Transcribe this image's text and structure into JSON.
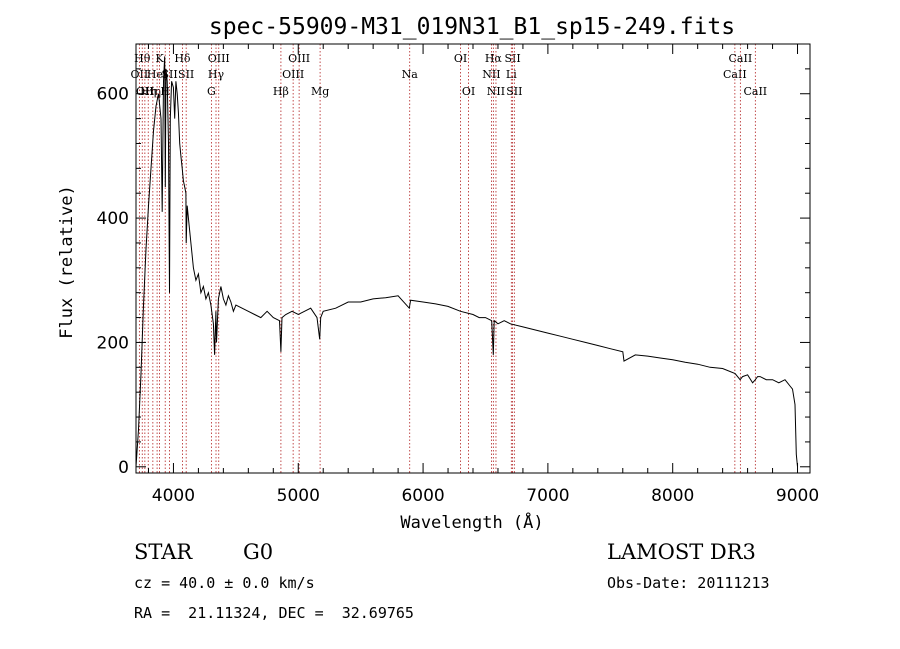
{
  "chart_data": {
    "type": "line",
    "title": "spec-55909-M31_019N31_B1_sp15-249.fits",
    "xlabel": "Wavelength (Å)",
    "ylabel": "Flux (relative)",
    "xlim": [
      3700,
      9100
    ],
    "ylim": [
      -10,
      680
    ],
    "xticks": [
      4000,
      5000,
      6000,
      7000,
      8000,
      9000
    ],
    "xtick_labels": [
      "4000",
      "5000",
      "6000",
      "7000",
      "8000",
      "9000"
    ],
    "yticks": [
      0,
      200,
      400,
      600
    ],
    "ytick_labels": [
      "0",
      "200",
      "400",
      "600"
    ],
    "grid": false,
    "series": [
      {
        "name": "flux",
        "x": [
          3700,
          3720,
          3740,
          3760,
          3780,
          3800,
          3820,
          3840,
          3860,
          3880,
          3900,
          3910,
          3920,
          3930,
          3935,
          3940,
          3950,
          3960,
          3968,
          3975,
          3985,
          4000,
          4010,
          4020,
          4030,
          4040,
          4050,
          4060,
          4070,
          4080,
          4090,
          4100,
          4102,
          4110,
          4120,
          4140,
          4160,
          4180,
          4200,
          4220,
          4240,
          4260,
          4280,
          4300,
          4320,
          4330,
          4340,
          4345,
          4360,
          4380,
          4400,
          4420,
          4440,
          4460,
          4480,
          4500,
          4550,
          4600,
          4650,
          4700,
          4750,
          4800,
          4850,
          4861,
          4870,
          4900,
          4950,
          5000,
          5050,
          5100,
          5150,
          5172,
          5180,
          5200,
          5300,
          5400,
          5500,
          5600,
          5700,
          5800,
          5890,
          5900,
          6000,
          6100,
          6200,
          6300,
          6400,
          6450,
          6500,
          6550,
          6563,
          6570,
          6600,
          6650,
          6700,
          6800,
          6900,
          7000,
          7100,
          7200,
          7300,
          7400,
          7500,
          7600,
          7610,
          7700,
          7800,
          7900,
          8000,
          8100,
          8200,
          8300,
          8400,
          8500,
          8540,
          8560,
          8600,
          8640,
          8662,
          8680,
          8700,
          8750,
          8800,
          8850,
          8900,
          8940,
          8960,
          8980,
          8990,
          9000
        ],
        "y": [
          0,
          60,
          150,
          260,
          350,
          420,
          480,
          540,
          580,
          600,
          560,
          410,
          620,
          660,
          450,
          640,
          620,
          520,
          280,
          560,
          620,
          610,
          560,
          620,
          600,
          570,
          520,
          500,
          480,
          460,
          450,
          440,
          360,
          420,
          400,
          360,
          320,
          300,
          310,
          280,
          290,
          270,
          280,
          260,
          230,
          180,
          250,
          200,
          270,
          290,
          270,
          260,
          275,
          265,
          250,
          260,
          255,
          250,
          245,
          240,
          250,
          240,
          235,
          185,
          240,
          245,
          250,
          245,
          250,
          255,
          240,
          205,
          240,
          250,
          255,
          265,
          265,
          270,
          272,
          275,
          255,
          268,
          265,
          262,
          258,
          250,
          245,
          240,
          240,
          235,
          180,
          235,
          230,
          235,
          230,
          225,
          220,
          215,
          210,
          205,
          200,
          195,
          190,
          185,
          170,
          180,
          178,
          175,
          172,
          168,
          165,
          160,
          158,
          150,
          140,
          145,
          148,
          135,
          140,
          145,
          145,
          140,
          140,
          135,
          140,
          130,
          125,
          100,
          20,
          0
        ]
      }
    ],
    "line_markers": [
      {
        "wavelength": 3727,
        "label": "OII",
        "row": 2
      },
      {
        "wavelength": 3750,
        "label": "Hθ",
        "row": 1
      },
      {
        "wavelength": 3771,
        "label": "OII",
        "row": 3
      },
      {
        "wavelength": 3798,
        "label": "Hη",
        "row": 3
      },
      {
        "wavelength": 3835,
        "label": "Hη",
        "row": 3
      },
      {
        "wavelength": 3869,
        "label": "HeI",
        "row": 2
      },
      {
        "wavelength": 3889,
        "label": "K",
        "row": 1
      },
      {
        "wavelength": 3934,
        "label": "H",
        "row": 3
      },
      {
        "wavelength": 3969,
        "label": "SII",
        "row": 2
      },
      {
        "wavelength": 4072,
        "label": "Hδ",
        "row": 1
      },
      {
        "wavelength": 4102,
        "label": "SII",
        "row": 2
      },
      {
        "wavelength": 4304,
        "label": "G",
        "row": 3
      },
      {
        "wavelength": 4341,
        "label": "Hγ",
        "row": 2
      },
      {
        "wavelength": 4363,
        "label": "OIII",
        "row": 1
      },
      {
        "wavelength": 4861,
        "label": "Hβ",
        "row": 3
      },
      {
        "wavelength": 4959,
        "label": "OIII",
        "row": 2
      },
      {
        "wavelength": 5007,
        "label": "OIII",
        "row": 1
      },
      {
        "wavelength": 5175,
        "label": "Mg",
        "row": 3
      },
      {
        "wavelength": 5893,
        "label": "Na",
        "row": 2
      },
      {
        "wavelength": 6300,
        "label": "OI",
        "row": 1
      },
      {
        "wavelength": 6364,
        "label": "OI",
        "row": 3
      },
      {
        "wavelength": 6548,
        "label": "NII",
        "row": 2
      },
      {
        "wavelength": 6563,
        "label": "Hα",
        "row": 1
      },
      {
        "wavelength": 6584,
        "label": "NII",
        "row": 3
      },
      {
        "wavelength": 6707,
        "label": "Li",
        "row": 2
      },
      {
        "wavelength": 6717,
        "label": "SII",
        "row": 1
      },
      {
        "wavelength": 6731,
        "label": "SII",
        "row": 3
      },
      {
        "wavelength": 8498,
        "label": "CaII",
        "row": 2
      },
      {
        "wavelength": 8542,
        "label": "CaII",
        "row": 1
      },
      {
        "wavelength": 8662,
        "label": "CaII",
        "row": 3
      }
    ]
  },
  "info": {
    "object_class": "STAR",
    "subclass": "G0",
    "survey": "LAMOST DR3",
    "redshift": "cz = 40.0 ± 0.0 km/s",
    "obs_date": "Obs-Date: 20111213",
    "coords": "RA =  21.11324, DEC =  32.69765"
  },
  "colors": {
    "spectrum": "#000000",
    "marker_line": "#b22222",
    "axes": "#000000",
    "background": "#ffffff"
  }
}
